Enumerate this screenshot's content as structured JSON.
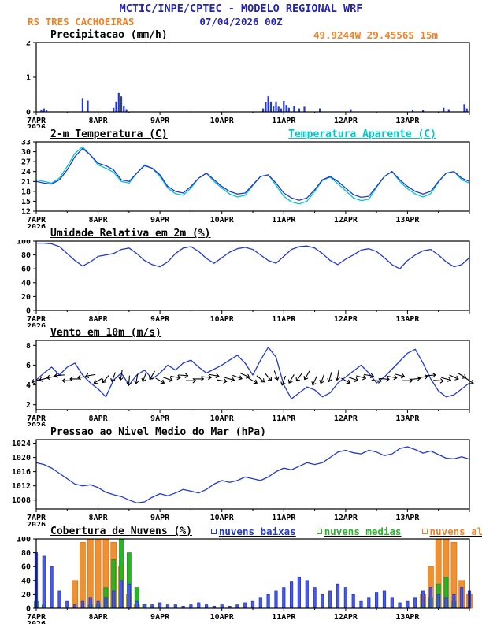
{
  "header": {
    "title": "MCTIC/INPE/CPTEC - MODELO REGIONAL WRF",
    "station": "RS TRES CACHOEIRAS",
    "run_datetime": "07/04/2026 00Z",
    "location_info": "49.9244W 29.4556S 15m"
  },
  "colors": {
    "header_blue": "#2323bb",
    "orange": "#f08228",
    "line_blue": "#2238d4",
    "cyan": "#00c8c8",
    "green": "#28b428",
    "black": "#000000"
  },
  "chart_data": {
    "x": {
      "total_hours": 168,
      "step_hours": 3,
      "day_labels": [
        "7APR",
        "8APR",
        "9APR",
        "10APR",
        "11APR",
        "12APR",
        "13APR"
      ],
      "year_label": "2026"
    },
    "panels": [
      {
        "title": "Precipitacao (mm/h)",
        "type": "bar",
        "ylim": [
          0,
          2
        ],
        "yticks": [
          0,
          1,
          2
        ],
        "series": [
          {
            "name": "precipitacao",
            "type": "sparse_bars",
            "color": "#2238d4",
            "points": [
              [
                2,
                0.07
              ],
              [
                3,
                0.1
              ],
              [
                4,
                0.05
              ],
              [
                18,
                0.38
              ],
              [
                20,
                0.33
              ],
              [
                30,
                0.12
              ],
              [
                31,
                0.3
              ],
              [
                32,
                0.55
              ],
              [
                33,
                0.45
              ],
              [
                34,
                0.18
              ],
              [
                35,
                0.08
              ],
              [
                88,
                0.1
              ],
              [
                89,
                0.28
              ],
              [
                90,
                0.45
              ],
              [
                91,
                0.3
              ],
              [
                92,
                0.18
              ],
              [
                93,
                0.3
              ],
              [
                94,
                0.15
              ],
              [
                95,
                0.1
              ],
              [
                96,
                0.32
              ],
              [
                97,
                0.2
              ],
              [
                98,
                0.12
              ],
              [
                100,
                0.18
              ],
              [
                102,
                0.1
              ],
              [
                104,
                0.15
              ],
              [
                110,
                0.1
              ],
              [
                122,
                0.08
              ],
              [
                146,
                0.07
              ],
              [
                150,
                0.05
              ],
              [
                158,
                0.12
              ],
              [
                160,
                0.08
              ],
              [
                166,
                0.22
              ],
              [
                167,
                0.1
              ]
            ]
          }
        ]
      },
      {
        "title": "2-m Temperatura (C)",
        "secondary_title": "Temperatura Aparente (C)",
        "secondary_color": "#00c8c8",
        "type": "line",
        "ylim": [
          12,
          33
        ],
        "yticks": [
          12,
          15,
          18,
          21,
          24,
          27,
          30,
          33
        ],
        "series": [
          {
            "name": "temperatura_aparente",
            "type": "line",
            "color": "#00c8c8",
            "step": 3,
            "values": [
              21.5,
              21,
              20.5,
              22,
              25.5,
              29.5,
              31.5,
              29,
              26,
              25,
              23.8,
              21,
              20.5,
              23.5,
              26,
              25,
              22.5,
              19,
              17.3,
              16.8,
              19,
              22,
              23.5,
              21,
              19,
              17.2,
              16.3,
              16.8,
              19.8,
              22.5,
              23,
              19.8,
              16.5,
              14.8,
              14.2,
              15,
              18,
              21.3,
              22.3,
              20.3,
              18.2,
              16,
              15.2,
              15.6,
              19.2,
              22.5,
              24,
              21,
              18.8,
              17.2,
              16.3,
              17.3,
              20.8,
              23.5,
              24,
              21.5,
              20.5
            ]
          },
          {
            "name": "t2m",
            "type": "line",
            "color": "#2238d4",
            "step": 3,
            "values": [
              21,
              20.5,
              20.2,
              21.5,
              24.5,
              28.5,
              31,
              29,
              26.5,
              25.8,
              24.5,
              21.5,
              21,
              23.5,
              25.8,
              25,
              23,
              19.5,
              18,
              17.5,
              19.5,
              22,
              23.5,
              21.5,
              19.5,
              18,
              17.2,
              17.5,
              20,
              22.5,
              23,
              20.5,
              17.5,
              16,
              15.3,
              16,
              18.5,
              21.5,
              22.5,
              21,
              19,
              17,
              16.2,
              16.5,
              19.5,
              22.5,
              24,
              21.5,
              19.5,
              18,
              17.2,
              18,
              21,
              23.5,
              24,
              22,
              21
            ]
          }
        ]
      },
      {
        "title": "Umidade Relativa em 2m (%)",
        "type": "line",
        "ylim": [
          0,
          100
        ],
        "yticks": [
          0,
          20,
          40,
          60,
          80,
          100
        ],
        "series": [
          {
            "name": "umidade_relativa",
            "type": "line",
            "color": "#2238d4",
            "step": 3,
            "values": [
              97,
              97,
              96,
              92,
              82,
              72,
              64,
              70,
              78,
              80,
              82,
              88,
              90,
              82,
              72,
              66,
              63,
              70,
              82,
              90,
              92,
              85,
              75,
              68,
              76,
              84,
              89,
              91,
              88,
              80,
              72,
              68,
              78,
              88,
              92,
              93,
              90,
              82,
              72,
              66,
              74,
              80,
              87,
              89,
              85,
              76,
              66,
              60,
              72,
              80,
              86,
              88,
              80,
              70,
              63,
              66,
              76
            ]
          }
        ]
      },
      {
        "title": "Vento em 10m (m/s)",
        "type": "line",
        "ylim": [
          1.5,
          8.5
        ],
        "yticks": [
          2,
          4,
          6,
          8
        ],
        "series": [
          {
            "name": "velocidade_vento",
            "type": "line",
            "color": "#2238d4",
            "step": 3,
            "values": [
              4.5,
              5.2,
              5.8,
              5,
              5.8,
              6.2,
              5,
              4.2,
              3.6,
              2.8,
              4.5,
              5.2,
              4,
              5,
              5.5,
              4.6,
              5.2,
              6,
              5.5,
              6.2,
              6.5,
              5.8,
              5.2,
              5.6,
              6,
              6.5,
              7,
              6.2,
              5,
              6.5,
              7.8,
              6.8,
              4,
              2.6,
              3.2,
              3.8,
              3.5,
              2.8,
              3.2,
              4.2,
              4.8,
              5.4,
              6,
              5.2,
              4.2,
              4.8,
              5.6,
              6.4,
              7.2,
              7.6,
              6.2,
              4.6,
              3.4,
              2.8,
              3,
              3.6,
              4.2
            ]
          },
          {
            "name": "direcao_vento",
            "type": "barbs",
            "color": "#000000",
            "step": 3,
            "level": 4.7,
            "dirs": [
              250,
              255,
              260,
              265,
              270,
              270,
              265,
              260,
              240,
              220,
              200,
              190,
              185,
              190,
              200,
              210,
              120,
              110,
              100,
              95,
              90,
              90,
              95,
              100,
              100,
              105,
              110,
              115,
              120,
              130,
              140,
              160,
              200,
              210,
              215,
              210,
              205,
              200,
              195,
              190,
              120,
              110,
              105,
              100,
              95,
              95,
              100,
              105,
              90,
              85,
              80,
              85,
              95,
              105,
              115,
              120,
              125
            ]
          }
        ]
      },
      {
        "title": "Pressao ao Nivel Medio do Mar (hPa)",
        "type": "line",
        "ylim": [
          1005.5,
          1025
        ],
        "yticks": [
          1008,
          1012,
          1016,
          1020,
          1024
        ],
        "series": [
          {
            "name": "pressao_nivel_mar",
            "type": "line",
            "color": "#2238d4",
            "step": 3,
            "values": [
              1018.5,
              1018,
              1017,
              1015.5,
              1014,
              1012.5,
              1012,
              1012.3,
              1011.5,
              1010.2,
              1009.5,
              1009,
              1008,
              1007.2,
              1007.5,
              1008.8,
              1009.8,
              1009.2,
              1010,
              1011,
              1010.5,
              1010,
              1011,
              1012.5,
              1013.5,
              1013,
              1013.5,
              1014.5,
              1014,
              1013.5,
              1014.5,
              1016,
              1017,
              1016.5,
              1017.5,
              1018.5,
              1018,
              1018.5,
              1020,
              1021.5,
              1022,
              1021.3,
              1021,
              1022,
              1021.5,
              1020.5,
              1021,
              1022.5,
              1023,
              1022.2,
              1021.2,
              1021.8,
              1020.8,
              1019.8,
              1019.6,
              1020.2,
              1019.5
            ]
          }
        ]
      },
      {
        "title": "Cobertura de Nuvens (%)",
        "type": "bar",
        "ylim": [
          0,
          100
        ],
        "yticks": [
          0,
          20,
          40,
          60,
          80,
          100
        ],
        "legend": [
          {
            "label": "nuvens baixas",
            "color": "#2238d4"
          },
          {
            "label": "nuvens medias",
            "color": "#28b428"
          },
          {
            "label": "nuvens altas",
            "color": "#f08228"
          }
        ],
        "series": [
          {
            "name": "nuvens_altas",
            "type": "bars",
            "color": "#e07818",
            "fill": "#f09030",
            "width": 7,
            "step": 3,
            "values": [
              0,
              0,
              0,
              0,
              0,
              40,
              95,
              100,
              100,
              100,
              95,
              60,
              20,
              5,
              0,
              0,
              0,
              0,
              0,
              0,
              0,
              0,
              0,
              0,
              0,
              0,
              0,
              0,
              0,
              0,
              0,
              0,
              0,
              0,
              0,
              0,
              0,
              0,
              0,
              0,
              0,
              0,
              0,
              0,
              0,
              0,
              0,
              0,
              0,
              0,
              20,
              60,
              100,
              100,
              95,
              40,
              20
            ]
          },
          {
            "name": "nuvens_medias",
            "type": "bars",
            "color": "#1e961e",
            "fill": "#28b428",
            "width": 5,
            "step": 3,
            "values": [
              10,
              5,
              0,
              0,
              0,
              0,
              0,
              5,
              5,
              30,
              70,
              100,
              80,
              30,
              5,
              0,
              0,
              0,
              0,
              0,
              0,
              0,
              0,
              0,
              0,
              0,
              0,
              0,
              0,
              0,
              0,
              0,
              0,
              0,
              0,
              0,
              0,
              0,
              0,
              0,
              0,
              0,
              0,
              0,
              0,
              0,
              0,
              0,
              0,
              0,
              5,
              15,
              35,
              45,
              10,
              0,
              0
            ]
          },
          {
            "name": "nuvens_baixas",
            "type": "bars",
            "color": "#2238d4",
            "fill": "#4a5ae0",
            "width": 3.4,
            "step": 3,
            "values": [
              80,
              75,
              60,
              25,
              10,
              5,
              10,
              15,
              10,
              15,
              25,
              40,
              35,
              10,
              5,
              5,
              8,
              5,
              5,
              3,
              5,
              8,
              5,
              3,
              5,
              3,
              5,
              8,
              10,
              15,
              20,
              25,
              30,
              38,
              45,
              40,
              30,
              20,
              25,
              35,
              30,
              20,
              10,
              15,
              22,
              25,
              15,
              8,
              10,
              15,
              25,
              30,
              20,
              15,
              20,
              30,
              25
            ]
          }
        ]
      }
    ]
  }
}
